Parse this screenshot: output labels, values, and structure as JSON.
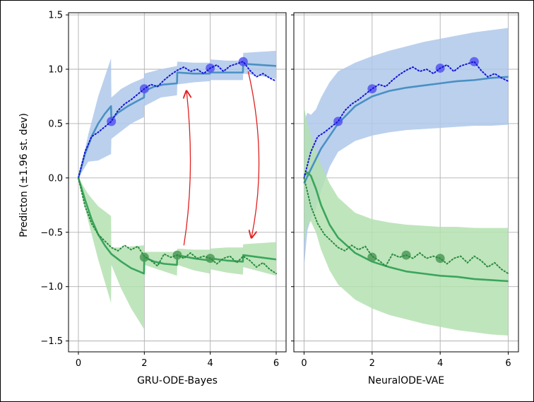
{
  "figure": {
    "ylabel": "Predicton (±1.96 st. dev)"
  },
  "chart_data": [
    {
      "type": "line",
      "title": "",
      "xlabel": "GRU-ODE-Bayes",
      "ylabel": "Predicton (±1.96 st. dev)",
      "xlim": [
        -0.3,
        6.3
      ],
      "ylim": [
        -1.6,
        1.52
      ],
      "xticks": [
        0,
        2,
        4,
        6
      ],
      "yticks": [
        -1.5,
        -1.0,
        -0.5,
        0.0,
        0.5,
        1.0,
        1.5
      ],
      "grid": true,
      "colors": {
        "blue_mean": "#4a90c4",
        "blue_band": "#aec8ea",
        "blue_truth": "#1515d8",
        "blue_obs": "#5555ee",
        "green_mean": "#3aa55c",
        "green_band": "#b4e0b0",
        "green_truth": "#2a8a40",
        "green_obs": "#4c9a58",
        "arrows": "#e02020"
      },
      "series": [
        {
          "kind": "prediction_mean",
          "color": "blue",
          "x": [
            0,
            0.2,
            0.4,
            0.6,
            0.8,
            0.99,
            1.0,
            1.2,
            1.5,
            1.8,
            1.99,
            2.0,
            2.3,
            2.6,
            2.99,
            3.0,
            3.5,
            3.99,
            4.0,
            4.5,
            4.99,
            5.0,
            5.5,
            6.0
          ],
          "y": [
            0.0,
            0.22,
            0.38,
            0.5,
            0.59,
            0.66,
            0.54,
            0.6,
            0.66,
            0.71,
            0.74,
            0.8,
            0.84,
            0.86,
            0.87,
            0.97,
            0.96,
            0.96,
            0.97,
            0.97,
            0.97,
            1.05,
            1.04,
            1.03
          ]
        },
        {
          "kind": "prediction_band",
          "color": "blue",
          "x": [
            0,
            0.3,
            0.6,
            0.99,
            1.0,
            1.3,
            1.6,
            1.99,
            2.0,
            2.5,
            2.99,
            3.0,
            3.5,
            3.99,
            4.0,
            4.5,
            4.99,
            5.0,
            5.5,
            6.0
          ],
          "upper": [
            0.0,
            0.4,
            0.75,
            1.1,
            0.74,
            0.82,
            0.87,
            0.92,
            0.96,
            1.0,
            1.03,
            1.07,
            1.06,
            1.06,
            1.09,
            1.08,
            1.08,
            1.15,
            1.16,
            1.17
          ],
          "lower": [
            0.0,
            0.15,
            0.16,
            0.22,
            0.36,
            0.43,
            0.5,
            0.56,
            0.66,
            0.74,
            0.76,
            0.86,
            0.88,
            0.89,
            0.9,
            0.9,
            0.9,
            0.96,
            0.94,
            0.91
          ]
        },
        {
          "kind": "ground_truth",
          "color": "blue",
          "x": [
            0,
            0.2,
            0.4,
            0.6,
            0.8,
            1.0,
            1.2,
            1.4,
            1.6,
            1.8,
            2.0,
            2.2,
            2.4,
            2.6,
            2.8,
            3.0,
            3.2,
            3.4,
            3.6,
            3.8,
            4.0,
            4.2,
            4.4,
            4.6,
            4.8,
            5.0,
            5.2,
            5.4,
            5.6,
            5.8,
            6.0
          ],
          "y": [
            0.0,
            0.24,
            0.38,
            0.42,
            0.47,
            0.52,
            0.62,
            0.68,
            0.72,
            0.77,
            0.82,
            0.86,
            0.84,
            0.9,
            0.95,
            0.99,
            1.02,
            0.98,
            1.0,
            0.96,
            1.01,
            1.04,
            0.98,
            1.03,
            1.05,
            1.07,
            0.99,
            0.93,
            0.96,
            0.92,
            0.89
          ]
        },
        {
          "kind": "observations",
          "color": "blue",
          "x": [
            1,
            2,
            4,
            5
          ],
          "y": [
            0.52,
            0.82,
            1.01,
            1.07
          ]
        },
        {
          "kind": "prediction_mean",
          "color": "green",
          "x": [
            0,
            0.2,
            0.4,
            0.6,
            0.8,
            1.0,
            1.3,
            1.6,
            1.99,
            2.0,
            2.3,
            2.6,
            2.99,
            3.0,
            3.5,
            3.99,
            4.0,
            4.5,
            4.99,
            5.0,
            5.5,
            6.0
          ],
          "y": [
            0.0,
            -0.2,
            -0.38,
            -0.52,
            -0.62,
            -0.7,
            -0.77,
            -0.83,
            -0.88,
            -0.73,
            -0.77,
            -0.79,
            -0.8,
            -0.71,
            -0.74,
            -0.76,
            -0.74,
            -0.76,
            -0.77,
            -0.71,
            -0.73,
            -0.75
          ]
        },
        {
          "kind": "prediction_band",
          "color": "green",
          "x": [
            0,
            0.3,
            0.6,
            0.99,
            1.0,
            1.3,
            1.6,
            1.99,
            2.0,
            2.5,
            2.99,
            3.0,
            3.5,
            3.99,
            4.0,
            4.5,
            4.99,
            5.0,
            5.5,
            6.0
          ],
          "upper": [
            0.0,
            -0.15,
            -0.26,
            -0.35,
            -0.64,
            -0.64,
            -0.63,
            -0.62,
            -0.68,
            -0.68,
            -0.68,
            -0.65,
            -0.66,
            -0.66,
            -0.65,
            -0.64,
            -0.64,
            -0.61,
            -0.6,
            -0.59
          ],
          "lower": [
            0.0,
            -0.4,
            -0.75,
            -1.15,
            -0.8,
            -1.02,
            -1.2,
            -1.39,
            -0.8,
            -0.85,
            -0.9,
            -0.8,
            -0.85,
            -0.88,
            -0.84,
            -0.87,
            -0.89,
            -0.82,
            -0.86,
            -0.9
          ]
        },
        {
          "kind": "ground_truth",
          "color": "green",
          "x": [
            0,
            0.2,
            0.4,
            0.6,
            0.8,
            1.0,
            1.2,
            1.4,
            1.6,
            1.8,
            2.0,
            2.2,
            2.4,
            2.6,
            2.8,
            3.0,
            3.2,
            3.4,
            3.6,
            3.8,
            4.0,
            4.2,
            4.4,
            4.6,
            4.8,
            5.0,
            5.2,
            5.4,
            5.6,
            5.8,
            6.0
          ],
          "y": [
            0.0,
            -0.26,
            -0.42,
            -0.52,
            -0.58,
            -0.64,
            -0.67,
            -0.62,
            -0.66,
            -0.63,
            -0.72,
            -0.76,
            -0.81,
            -0.7,
            -0.73,
            -0.71,
            -0.74,
            -0.69,
            -0.74,
            -0.72,
            -0.74,
            -0.79,
            -0.74,
            -0.72,
            -0.78,
            -0.72,
            -0.76,
            -0.82,
            -0.78,
            -0.84,
            -0.88
          ]
        },
        {
          "kind": "observations",
          "color": "green",
          "x": [
            2,
            3,
            4
          ],
          "y": [
            -0.73,
            -0.71,
            -0.74
          ]
        }
      ]
    },
    {
      "type": "line",
      "title": "",
      "xlabel": "NeuralODE-VAE",
      "ylabel": "",
      "xlim": [
        -0.3,
        6.3
      ],
      "ylim": [
        -1.6,
        1.52
      ],
      "xticks": [
        0,
        2,
        4,
        6
      ],
      "yticks": [
        -1.5,
        -1.0,
        -0.5,
        0.0,
        0.5,
        1.0,
        1.5
      ],
      "grid": true,
      "series": [
        {
          "kind": "prediction_mean",
          "color": "blue",
          "x": [
            0,
            0.2,
            0.5,
            1.0,
            1.5,
            2.0,
            2.5,
            3.0,
            3.5,
            4.0,
            4.5,
            5.0,
            5.5,
            6.0
          ],
          "y": [
            -0.05,
            0.08,
            0.27,
            0.5,
            0.66,
            0.75,
            0.8,
            0.83,
            0.85,
            0.87,
            0.89,
            0.9,
            0.92,
            0.93
          ]
        },
        {
          "kind": "prediction_band",
          "color": "blue",
          "x": [
            0,
            0.1,
            0.2,
            0.35,
            0.5,
            0.75,
            1.0,
            1.5,
            2.0,
            2.5,
            3.0,
            3.5,
            4.0,
            4.5,
            5.0,
            5.5,
            6.0
          ],
          "upper": [
            0.52,
            0.6,
            0.58,
            0.63,
            0.74,
            0.88,
            0.98,
            1.06,
            1.12,
            1.17,
            1.21,
            1.25,
            1.28,
            1.31,
            1.34,
            1.36,
            1.38
          ],
          "lower": [
            -0.82,
            -0.48,
            -0.38,
            -0.28,
            -0.12,
            0.1,
            0.24,
            0.34,
            0.39,
            0.42,
            0.44,
            0.45,
            0.46,
            0.47,
            0.48,
            0.48,
            0.49
          ]
        },
        {
          "kind": "ground_truth",
          "color": "blue",
          "x": [
            0,
            0.2,
            0.4,
            0.6,
            0.8,
            1.0,
            1.2,
            1.4,
            1.6,
            1.8,
            2.0,
            2.2,
            2.4,
            2.6,
            2.8,
            3.0,
            3.2,
            3.4,
            3.6,
            3.8,
            4.0,
            4.2,
            4.4,
            4.6,
            4.8,
            5.0,
            5.2,
            5.4,
            5.6,
            5.8,
            6.0
          ],
          "y": [
            0.0,
            0.24,
            0.38,
            0.42,
            0.47,
            0.52,
            0.62,
            0.68,
            0.72,
            0.77,
            0.82,
            0.86,
            0.84,
            0.9,
            0.95,
            0.99,
            1.02,
            0.98,
            1.0,
            0.96,
            1.01,
            1.04,
            0.98,
            1.03,
            1.05,
            1.07,
            0.99,
            0.93,
            0.96,
            0.92,
            0.89
          ]
        },
        {
          "kind": "observations",
          "color": "blue",
          "x": [
            1,
            2,
            4,
            5
          ],
          "y": [
            0.52,
            0.82,
            1.01,
            1.07
          ]
        },
        {
          "kind": "prediction_mean",
          "color": "green",
          "x": [
            0,
            0.1,
            0.2,
            0.35,
            0.5,
            0.75,
            1.0,
            1.5,
            2.0,
            2.5,
            3.0,
            3.5,
            4.0,
            4.5,
            5.0,
            5.5,
            6.0
          ],
          "y": [
            0.02,
            0.05,
            0.02,
            -0.1,
            -0.25,
            -0.43,
            -0.55,
            -0.69,
            -0.77,
            -0.82,
            -0.86,
            -0.88,
            -0.9,
            -0.91,
            -0.93,
            -0.94,
            -0.95
          ]
        },
        {
          "kind": "prediction_band",
          "color": "green",
          "x": [
            0,
            0.1,
            0.2,
            0.35,
            0.5,
            0.75,
            1.0,
            1.5,
            2.0,
            2.5,
            3.0,
            3.5,
            4.0,
            4.5,
            5.0,
            5.5,
            6.0
          ],
          "upper": [
            0.65,
            0.5,
            0.4,
            0.25,
            0.12,
            -0.05,
            -0.18,
            -0.32,
            -0.38,
            -0.41,
            -0.43,
            -0.44,
            -0.45,
            -0.45,
            -0.46,
            -0.46,
            -0.46
          ],
          "lower": [
            -0.58,
            -0.42,
            -0.4,
            -0.5,
            -0.66,
            -0.85,
            -0.98,
            -1.12,
            -1.2,
            -1.26,
            -1.3,
            -1.34,
            -1.37,
            -1.4,
            -1.42,
            -1.44,
            -1.45
          ]
        },
        {
          "kind": "ground_truth",
          "color": "green",
          "x": [
            0,
            0.2,
            0.4,
            0.6,
            0.8,
            1.0,
            1.2,
            1.4,
            1.6,
            1.8,
            2.0,
            2.2,
            2.4,
            2.6,
            2.8,
            3.0,
            3.2,
            3.4,
            3.6,
            3.8,
            4.0,
            4.2,
            4.4,
            4.6,
            4.8,
            5.0,
            5.2,
            5.4,
            5.6,
            5.8,
            6.0
          ],
          "y": [
            0.0,
            -0.26,
            -0.42,
            -0.52,
            -0.58,
            -0.64,
            -0.67,
            -0.62,
            -0.66,
            -0.63,
            -0.72,
            -0.76,
            -0.81,
            -0.7,
            -0.73,
            -0.71,
            -0.74,
            -0.69,
            -0.74,
            -0.72,
            -0.74,
            -0.79,
            -0.74,
            -0.72,
            -0.78,
            -0.72,
            -0.76,
            -0.82,
            -0.78,
            -0.84,
            -0.88
          ]
        },
        {
          "kind": "observations",
          "color": "green",
          "x": [
            2,
            3,
            4
          ],
          "y": [
            -0.73,
            -0.71,
            -0.74
          ]
        }
      ]
    }
  ]
}
